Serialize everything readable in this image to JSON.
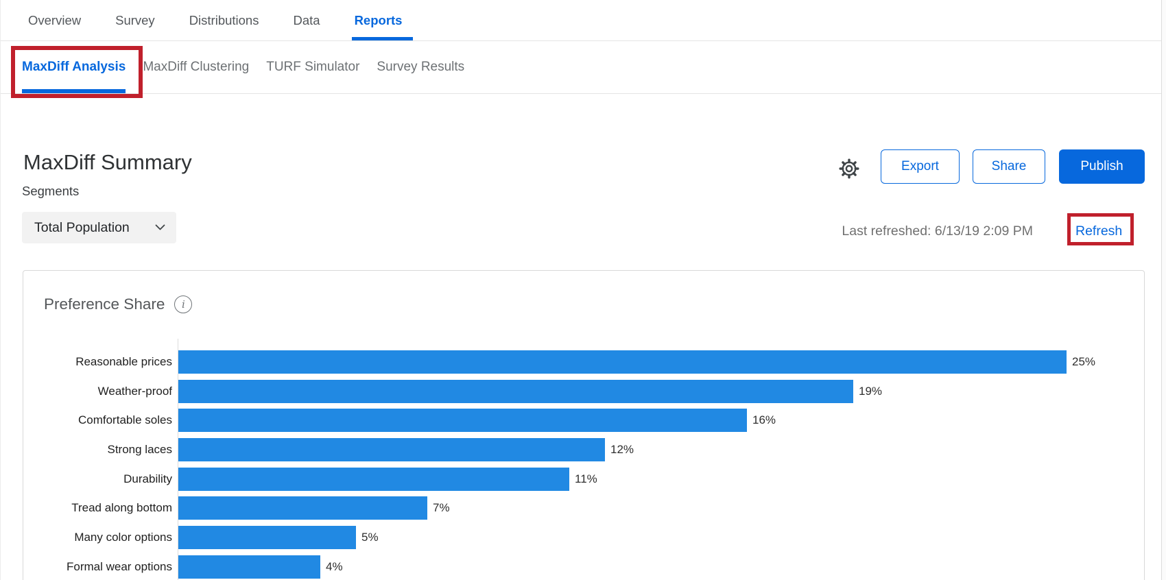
{
  "nav": {
    "tabs": [
      {
        "label": "Overview",
        "active": false
      },
      {
        "label": "Survey",
        "active": false
      },
      {
        "label": "Distributions",
        "active": false
      },
      {
        "label": "Data",
        "active": false
      },
      {
        "label": "Reports",
        "active": true
      }
    ]
  },
  "subnav": {
    "tabs": [
      {
        "label": "MaxDiff Analysis",
        "active": true
      },
      {
        "label": "MaxDiff Clustering",
        "active": false
      },
      {
        "label": "TURF Simulator",
        "active": false
      },
      {
        "label": "Survey Results",
        "active": false
      }
    ]
  },
  "header": {
    "title": "MaxDiff Summary",
    "export_label": "Export",
    "share_label": "Share",
    "publish_label": "Publish"
  },
  "segments": {
    "label": "Segments",
    "selected": "Total Population"
  },
  "status": {
    "last_refreshed": "Last refreshed: 6/13/19 2:09 PM",
    "refresh_label": "Refresh"
  },
  "icons": {
    "gear": "settings-gear",
    "chevron_down": "chevron-down",
    "info": "i"
  },
  "colors": {
    "accent_blue": "#0768DD",
    "bar_blue": "#2189E3",
    "annotation_red": "#C0202C"
  },
  "chart_data": {
    "type": "bar",
    "orientation": "horizontal",
    "title": "Preference Share",
    "categories": [
      "Reasonable prices",
      "Weather-proof",
      "Comfortable soles",
      "Strong laces",
      "Durability",
      "Tread along bottom",
      "Many color options",
      "Formal wear options"
    ],
    "values": [
      25,
      19,
      16,
      12,
      11,
      7,
      5,
      4
    ],
    "value_labels": [
      "25%",
      "19%",
      "16%",
      "12%",
      "11%",
      "7%",
      "5%",
      "4%"
    ],
    "xlabel": "",
    "ylabel": "",
    "xlim": [
      0,
      27
    ],
    "grid": false,
    "legend": "none",
    "value_label_position": "end-of-bar",
    "sort": "descending",
    "bar_color": "#2189E3"
  }
}
